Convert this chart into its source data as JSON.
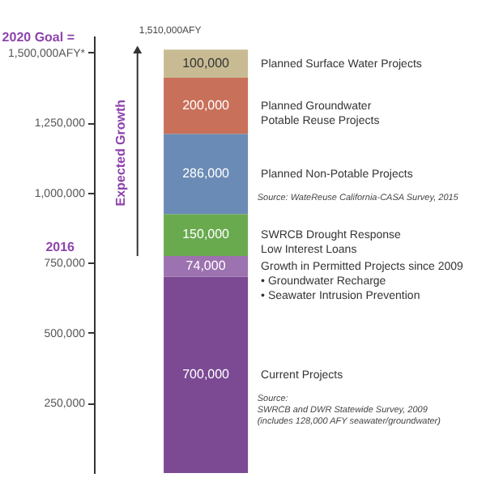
{
  "chart_data": {
    "type": "bar",
    "stacked": true,
    "categories": [
      null
    ],
    "series": [
      {
        "name": "Current Projects",
        "color": "#7b4a93",
        "values": [
          700000
        ],
        "value_labels": [
          "700,000"
        ]
      },
      {
        "name": "Growth in Permitted Projects since 2009\n• Groundwater Recharge\n• Seawater Intrusion Prevention",
        "color": "#9d72b0",
        "values": [
          74000
        ],
        "value_labels": [
          "74,000"
        ]
      },
      {
        "name": "SWRCB Drought Response\nLow Interest Loans",
        "color": "#6aaa4f",
        "values": [
          150000
        ],
        "value_labels": [
          "150,000"
        ]
      },
      {
        "name": "Planned Non-Potable Projects",
        "color": "#6a8bb5",
        "values": [
          286000
        ],
        "value_labels": [
          "286,000"
        ]
      },
      {
        "name": "Planned Groundwater\nPotable Reuse Projects",
        "color": "#c9705a",
        "values": [
          200000
        ],
        "value_labels": [
          "200,000"
        ]
      },
      {
        "name": "Planned Surface Water Projects",
        "color": "#c8bb93",
        "values": [
          100000
        ],
        "value_labels": [
          "100,000"
        ]
      }
    ],
    "totals": [
      "1,510,000AFY"
    ],
    "ylim": [
      0,
      1560000
    ],
    "yticks": [
      {
        "value": 250000,
        "label": "250,000"
      },
      {
        "value": 500000,
        "label": "500,000"
      },
      {
        "value": 750000,
        "label": "750,000"
      },
      {
        "value": 1000000,
        "label": "1,000,000"
      },
      {
        "value": 1250000,
        "label": "1,250,000"
      },
      {
        "value": 1500000,
        "label": "1,500,000AFY*"
      }
    ],
    "annotations": [
      "2020 Goal =",
      "2016",
      "Expected Growth",
      "Source: WateReuse California-CASA Survey, 2015",
      "Source:\nSWRCB and DWR Statewide Survey, 2009\n(includes 128,000 AFY seawater/groundwater)"
    ],
    "grid": false
  }
}
